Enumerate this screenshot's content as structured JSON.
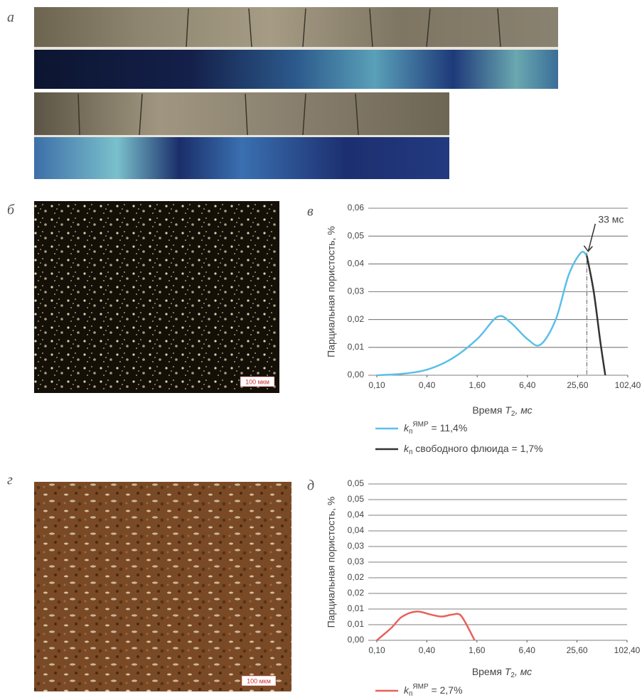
{
  "panels": {
    "a": "а",
    "b": "б",
    "v": "в",
    "g": "г",
    "d": "д"
  },
  "scale_bars": [
    "100 мкм",
    "100 мкм"
  ],
  "chart_data": [
    {
      "type": "line",
      "ylabel": "Парциальная пористость, %",
      "xlabel": {
        "text": "Время ",
        "var": "T",
        "sub": "2",
        "unit": ", мс"
      },
      "xscale": "log",
      "xlim": [
        0.1,
        102.4
      ],
      "xticks": [
        {
          "value": 0.1,
          "label": "0,10"
        },
        {
          "value": 0.4,
          "label": "0,40"
        },
        {
          "value": 1.6,
          "label": "1,60"
        },
        {
          "value": 6.4,
          "label": "6,40"
        },
        {
          "value": 25.6,
          "label": "25,60"
        },
        {
          "value": 102.4,
          "label": "102,40"
        }
      ],
      "ylim": [
        0,
        0.06
      ],
      "yticks": [
        {
          "value": 0,
          "label": "0,00"
        },
        {
          "value": 0.01,
          "label": "0,01"
        },
        {
          "value": 0.02,
          "label": "0,02"
        },
        {
          "value": 0.03,
          "label": "0,03"
        },
        {
          "value": 0.04,
          "label": "0,04"
        },
        {
          "value": 0.05,
          "label": "0,05"
        },
        {
          "value": 0.06,
          "label": "0,06"
        }
      ],
      "grid": true,
      "series": [
        {
          "name": {
            "k": "k",
            "sub": "п",
            "sup": "ЯМР",
            "text": " = 11,4%"
          },
          "color": "#5bbfe8",
          "x": [
            0.1,
            0.2,
            0.4,
            0.8,
            1.6,
            2.8,
            4,
            6.4,
            9.2,
            14,
            20,
            28,
            33
          ],
          "values": [
            0,
            0.0005,
            0.002,
            0.006,
            0.013,
            0.021,
            0.019,
            0.013,
            0.011,
            0.02,
            0.036,
            0.044,
            0.043
          ]
        },
        {
          "name": {
            "k": "k",
            "sub": "п",
            "text": " свободного флюида = 1,7%"
          },
          "color": "#333333",
          "x": [
            33,
            40,
            48,
            55
          ],
          "values": [
            0.043,
            0.03,
            0.012,
            0
          ]
        }
      ],
      "annotation": {
        "text": "33 мс",
        "x": 33
      }
    },
    {
      "type": "line",
      "ylabel": "Парциальная пористость, %",
      "xlabel": {
        "text": "Время ",
        "var": "T",
        "sub": "2",
        "unit": ", мс"
      },
      "xscale": "log",
      "xlim": [
        0.1,
        102.4
      ],
      "xticks": [
        {
          "value": 0.1,
          "label": "0,10"
        },
        {
          "value": 0.4,
          "label": "0,40"
        },
        {
          "value": 1.6,
          "label": "1,60"
        },
        {
          "value": 6.4,
          "label": "6,40"
        },
        {
          "value": 25.6,
          "label": "25,60"
        },
        {
          "value": 102.4,
          "label": "102,40"
        }
      ],
      "ylim": [
        0,
        0.05
      ],
      "yticks": [
        {
          "value": 0,
          "label": "0,00"
        },
        {
          "value": 0.005,
          "label": "0,01"
        },
        {
          "value": 0.01,
          "label": "0,01"
        },
        {
          "value": 0.015,
          "label": "0,02"
        },
        {
          "value": 0.02,
          "label": "0,02"
        },
        {
          "value": 0.025,
          "label": "0,03"
        },
        {
          "value": 0.03,
          "label": "0,03"
        },
        {
          "value": 0.035,
          "label": "0,04"
        },
        {
          "value": 0.04,
          "label": "0,04"
        },
        {
          "value": 0.045,
          "label": "0,05"
        },
        {
          "value": 0.05,
          "label": "0,05"
        }
      ],
      "grid": true,
      "series": [
        {
          "name": {
            "k": "k",
            "sub": "п",
            "sup": "ЯМР",
            "text": " = 2,7%"
          },
          "color": "#e8605a",
          "x": [
            0.1,
            0.15,
            0.2,
            0.3,
            0.45,
            0.6,
            0.8,
            1.0,
            1.2,
            1.5
          ],
          "values": [
            0,
            0.004,
            0.0075,
            0.0092,
            0.0082,
            0.0076,
            0.0082,
            0.0082,
            0.005,
            0
          ]
        }
      ]
    }
  ]
}
